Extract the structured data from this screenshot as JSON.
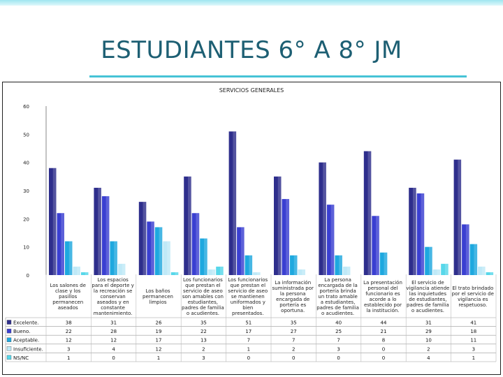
{
  "slide": {
    "title": "ESTUDIANTES 6° A 8° JM"
  },
  "chart_data": {
    "type": "bar",
    "title": "SERVICIOS GENERALES",
    "xlabel": "",
    "ylabel": "",
    "ylim": [
      0,
      60
    ],
    "yticks": [
      0,
      10,
      20,
      30,
      40,
      50,
      60
    ],
    "grid": false,
    "legend": "left-table",
    "categories": [
      "Los salones de clase y los pasillos permanecen aseados",
      "Los espacios para el deporte y la recreación se conservan aseados y en constante mantenimiento.",
      "Los baños permanecen limpios",
      "Los funcionarios que prestan el servicio de aseo son amables con estudiantes, padres de familia o acudientes.",
      "Los funcionarios que prestan el servicio de aseo se mantienen uniformados y bien presentados.",
      "La información suministrada por la persona encargada de portería es oportuna.",
      "La persona encargada de la portería brinda un trato amable a estudiantes, padres de familia o acudientes.",
      "La presentación personal del funcionario es acorde a lo establecido por la institución.",
      "El servicio de vigilancia atiende las inquietudes de estudiantes, padres de familia o acudientes.",
      "El trato brindado por el servicio de vigilancia es respetuoso."
    ],
    "series": [
      {
        "name": "Excelente.",
        "color": "#2e2e8c",
        "values": [
          38,
          31,
          26,
          35,
          51,
          35,
          40,
          44,
          31,
          41
        ]
      },
      {
        "name": "Bueno.",
        "color": "#3a3fd1",
        "values": [
          22,
          28,
          19,
          22,
          17,
          27,
          25,
          21,
          29,
          18
        ]
      },
      {
        "name": "Aceptable.",
        "color": "#1ea8df",
        "values": [
          12,
          12,
          17,
          13,
          7,
          7,
          7,
          8,
          10,
          11
        ]
      },
      {
        "name": "Insuficiente.",
        "color": "#bfe9f7",
        "values": [
          3,
          4,
          12,
          2,
          1,
          2,
          3,
          0,
          2,
          3
        ]
      },
      {
        "name": "NS/NC",
        "color": "#57d7ea",
        "values": [
          1,
          0,
          1,
          3,
          0,
          0,
          0,
          0,
          4,
          1
        ]
      }
    ]
  }
}
